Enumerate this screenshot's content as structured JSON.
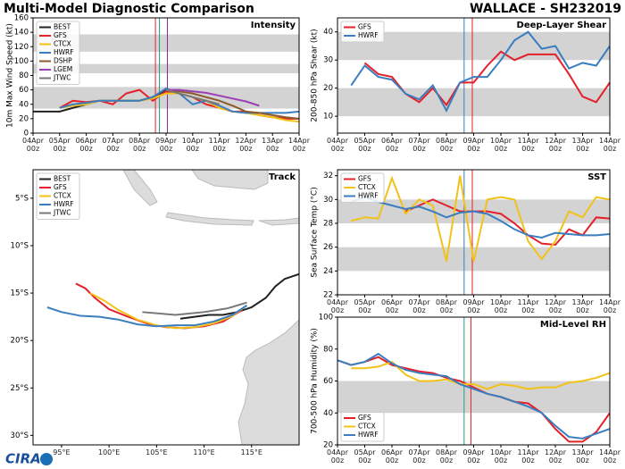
{
  "header": {
    "title": "Multi-Model Diagnostic Comparison",
    "storm": "WALLACE - SH232019"
  },
  "footer": "CIRA",
  "chart_data": [
    {
      "type": "line",
      "title": "Intensity",
      "y_label": "10m Max Wind Speed (kt)",
      "legend": "upper left",
      "xlim": [
        0,
        10
      ],
      "ylim": [
        0,
        160
      ],
      "xticks": [
        {
          "value": 0,
          "label": "04Apr\n00z"
        },
        {
          "value": 1,
          "label": "05Apr\n00z"
        },
        {
          "value": 2,
          "label": "06Apr\n00z"
        },
        {
          "value": 3,
          "label": "07Apr\n00z"
        },
        {
          "value": 4,
          "label": "08Apr\n00z"
        },
        {
          "value": 5,
          "label": "09Apr\n00z"
        },
        {
          "value": 6,
          "label": "10Apr\n00z"
        },
        {
          "value": 7,
          "label": "11Apr\n00z"
        },
        {
          "value": 8,
          "label": "12Apr\n00z"
        },
        {
          "value": 9,
          "label": "13Apr\n00z"
        },
        {
          "value": 10,
          "label": "14Apr\n00z"
        }
      ],
      "yticks": [
        0,
        20,
        40,
        60,
        80,
        100,
        120,
        140,
        160
      ],
      "bands": [
        [
          34,
          64
        ],
        [
          83,
          96
        ],
        [
          113,
          137
        ]
      ],
      "vlines": [
        {
          "x": 4.6,
          "color": "#e4202a"
        },
        {
          "x": 4.75,
          "color": "#1f9e89"
        },
        {
          "x": 5.05,
          "color": "#7b3294"
        }
      ],
      "x": [
        0,
        0.5,
        1,
        1.5,
        2,
        2.5,
        3,
        3.5,
        4,
        4.5,
        5,
        5.5,
        6,
        6.5,
        7,
        7.5,
        8,
        8.5,
        9,
        9.5,
        10
      ],
      "series": [
        {
          "name": "BEST",
          "color": "#222222",
          "values": [
            30,
            30,
            30,
            35,
            40,
            45,
            45,
            45,
            45,
            50,
            60,
            null,
            null,
            null,
            null,
            null,
            null,
            null,
            null,
            null,
            null
          ]
        },
        {
          "name": "GFS",
          "color": "#e4202a",
          "values": [
            null,
            null,
            35,
            45,
            43,
            45,
            40,
            55,
            60,
            45,
            58,
            55,
            50,
            40,
            35,
            30,
            30,
            25,
            22,
            20,
            20
          ]
        },
        {
          "name": "CTCX",
          "color": "#f2c219",
          "values": [
            null,
            null,
            35,
            38,
            40,
            45,
            45,
            45,
            45,
            48,
            55,
            55,
            50,
            45,
            35,
            30,
            28,
            25,
            22,
            18,
            16
          ]
        },
        {
          "name": "HWRF",
          "color": "#3a7ebf",
          "values": [
            null,
            null,
            35,
            40,
            42,
            45,
            45,
            45,
            45,
            50,
            62,
            55,
            40,
            45,
            38,
            30,
            28,
            28,
            28,
            28,
            30
          ]
        },
        {
          "name": "DSHP",
          "color": "#8c5a2b",
          "values": [
            null,
            null,
            null,
            null,
            null,
            null,
            null,
            null,
            null,
            null,
            60,
            58,
            55,
            50,
            45,
            38,
            30,
            28,
            25,
            22,
            20
          ]
        },
        {
          "name": "LGEM",
          "color": "#9b3fb5",
          "values": [
            null,
            null,
            null,
            null,
            null,
            null,
            null,
            null,
            null,
            null,
            60,
            60,
            58,
            56,
            52,
            48,
            44,
            38,
            null,
            null,
            null
          ]
        },
        {
          "name": "JTWC",
          "color": "#777777",
          "values": [
            null,
            null,
            null,
            null,
            null,
            null,
            null,
            null,
            null,
            null,
            60,
            55,
            50,
            45,
            40,
            null,
            null,
            null,
            null,
            null,
            null
          ]
        }
      ]
    },
    {
      "type": "track",
      "title": "Track",
      "legend": "upper left",
      "xlim": [
        92,
        120
      ],
      "ylim": [
        -31,
        -2
      ],
      "xticks": [
        {
          "value": 95,
          "label": "95°E"
        },
        {
          "value": 100,
          "label": "100°E"
        },
        {
          "value": 105,
          "label": "105°E"
        },
        {
          "value": 110,
          "label": "110°E"
        },
        {
          "value": 115,
          "label": "115°E"
        }
      ],
      "yticks": [
        {
          "value": -5,
          "label": "5°S"
        },
        {
          "value": -10,
          "label": "10°S"
        },
        {
          "value": -15,
          "label": "15°S"
        },
        {
          "value": -20,
          "label": "20°S"
        },
        {
          "value": -25,
          "label": "25°S"
        },
        {
          "value": -30,
          "label": "30°S"
        }
      ],
      "series": [
        {
          "name": "BEST",
          "color": "#222222",
          "lon": [
            120,
            118.5,
            117.5,
            116.5,
            115,
            113.5,
            112,
            110.5,
            109,
            107.5
          ],
          "lat": [
            -13,
            -13.5,
            -14.3,
            -15.5,
            -16.5,
            -17,
            -17.3,
            -17.3,
            -17.5,
            -17.7
          ]
        },
        {
          "name": "GFS",
          "color": "#e4202a",
          "lon": [
            96.5,
            97.5,
            98.5,
            100,
            102,
            104,
            106,
            108,
            110,
            112,
            114
          ],
          "lat": [
            -14,
            -14.5,
            -15.5,
            -16.7,
            -17.5,
            -18.2,
            -18.6,
            -18.7,
            -18.5,
            -18,
            -16.8
          ]
        },
        {
          "name": "CTCX",
          "color": "#f2c219",
          "lon": [
            98,
            99.5,
            101,
            103,
            105,
            107,
            109,
            111,
            113,
            114.5
          ],
          "lat": [
            -15,
            -15.8,
            -16.8,
            -17.8,
            -18.4,
            -18.7,
            -18.6,
            -18.2,
            -17.4,
            -16.3
          ]
        },
        {
          "name": "HWRF",
          "color": "#3a7ebf",
          "lon": [
            93.5,
            95,
            97,
            99,
            101,
            103,
            105,
            107,
            109,
            111,
            113,
            114.5
          ],
          "lat": [
            -16.5,
            -17,
            -17.4,
            -17.5,
            -17.8,
            -18.3,
            -18.5,
            -18.4,
            -18.4,
            -18,
            -17.3,
            -16.3
          ]
        },
        {
          "name": "JTWC",
          "color": "#777777",
          "lon": [
            103.5,
            107,
            110,
            112.5,
            114.5
          ],
          "lat": [
            -17,
            -17.3,
            -17,
            -16.6,
            -16
          ]
        }
      ]
    },
    {
      "type": "line",
      "title": "Deep-Layer Shear",
      "y_label": "200-850 hPa Shear (kt)",
      "legend": "upper left",
      "xlim": [
        0,
        10
      ],
      "ylim": [
        4,
        45
      ],
      "xticks": [
        {
          "value": 0,
          "label": "04Apr\n00z"
        },
        {
          "value": 1,
          "label": "05Apr\n00z"
        },
        {
          "value": 2,
          "label": "06Apr\n00z"
        },
        {
          "value": 3,
          "label": "07Apr\n00z"
        },
        {
          "value": 4,
          "label": "08Apr\n00z"
        },
        {
          "value": 5,
          "label": "09Apr\n00z"
        },
        {
          "value": 6,
          "label": "10Apr\n00z"
        },
        {
          "value": 7,
          "label": "11Apr\n00z"
        },
        {
          "value": 8,
          "label": "12Apr\n00z"
        },
        {
          "value": 9,
          "label": "13Apr\n00z"
        },
        {
          "value": 10,
          "label": "14Apr\n00z"
        }
      ],
      "yticks": [
        10,
        20,
        30,
        40
      ],
      "bands": [
        [
          10,
          20
        ],
        [
          30,
          40
        ]
      ],
      "vlines": [
        {
          "x": 4.65,
          "color": "#3a7ebf"
        },
        {
          "x": 4.95,
          "color": "#e4202a"
        }
      ],
      "x": [
        0,
        0.5,
        1,
        1.5,
        2,
        2.5,
        3,
        3.5,
        4,
        4.5,
        5,
        5.5,
        6,
        6.5,
        7,
        7.5,
        8,
        8.5,
        9,
        9.5,
        10
      ],
      "series": [
        {
          "name": "GFS",
          "color": "#e4202a",
          "values": [
            null,
            null,
            29,
            25,
            24,
            18,
            15,
            20,
            14,
            22,
            22,
            28,
            33,
            30,
            32,
            32,
            32,
            25,
            17,
            15,
            22
          ]
        },
        {
          "name": "HWRF",
          "color": "#3a7ebf",
          "values": [
            null,
            21,
            28,
            24,
            23,
            18,
            16,
            21,
            12,
            22,
            24,
            24,
            30,
            37,
            40,
            34,
            35,
            27,
            29,
            28,
            35
          ]
        }
      ]
    },
    {
      "type": "line",
      "title": "SST",
      "y_label": "Sea Surface Temp (°C)",
      "legend": "upper left",
      "xlim": [
        0,
        10
      ],
      "ylim": [
        22,
        32.5
      ],
      "xticks": [
        {
          "value": 0,
          "label": "04Apr\n00z"
        },
        {
          "value": 1,
          "label": "05Apr\n00z"
        },
        {
          "value": 2,
          "label": "06Apr\n00z"
        },
        {
          "value": 3,
          "label": "07Apr\n00z"
        },
        {
          "value": 4,
          "label": "08Apr\n00z"
        },
        {
          "value": 5,
          "label": "09Apr\n00z"
        },
        {
          "value": 6,
          "label": "10Apr\n00z"
        },
        {
          "value": 7,
          "label": "11Apr\n00z"
        },
        {
          "value": 8,
          "label": "12Apr\n00z"
        },
        {
          "value": 9,
          "label": "13Apr\n00z"
        },
        {
          "value": 10,
          "label": "14Apr\n00z"
        }
      ],
      "yticks": [
        22,
        24,
        26,
        28,
        30,
        32
      ],
      "bands": [
        [
          24,
          26
        ],
        [
          28,
          30
        ]
      ],
      "vlines": [
        {
          "x": 4.65,
          "color": "#3a7ebf"
        },
        {
          "x": 4.95,
          "color": "#e4202a"
        }
      ],
      "x": [
        0,
        0.5,
        1,
        1.5,
        2,
        2.5,
        3,
        3.5,
        4,
        4.5,
        5,
        5.5,
        6,
        6.5,
        7,
        7.5,
        8,
        8.5,
        9,
        9.5,
        10
      ],
      "series": [
        {
          "name": "GFS",
          "color": "#e4202a",
          "values": [
            null,
            null,
            null,
            null,
            null,
            29,
            29.5,
            30,
            29.5,
            29,
            29,
            29,
            28.8,
            28,
            27,
            26.3,
            26.2,
            27.5,
            27,
            28.5,
            28.4
          ]
        },
        {
          "name": "CTCX",
          "color": "#f2c219",
          "values": [
            null,
            28.2,
            28.5,
            28.4,
            31.8,
            28.8,
            30,
            29.5,
            24.8,
            32,
            24.8,
            30,
            30.2,
            30,
            26.5,
            25,
            26.5,
            29,
            28.5,
            30.2,
            30
          ]
        },
        {
          "name": "HWRF",
          "color": "#3a7ebf",
          "values": [
            null,
            29.8,
            30.2,
            29.8,
            29.5,
            29.2,
            29.4,
            29,
            28.5,
            28.9,
            29,
            28.8,
            28.2,
            27.5,
            27,
            26.8,
            27.2,
            27.1,
            27,
            27,
            27.1
          ]
        }
      ]
    },
    {
      "type": "line",
      "title": "Mid-Level RH",
      "y_label": "700-500 hPa Humidity (%)",
      "legend": "lower left",
      "xlim": [
        0,
        10
      ],
      "ylim": [
        20,
        100
      ],
      "xticks": [
        {
          "value": 0,
          "label": "04Apr\n00z"
        },
        {
          "value": 1,
          "label": "05Apr\n00z"
        },
        {
          "value": 2,
          "label": "06Apr\n00z"
        },
        {
          "value": 3,
          "label": "07Apr\n00z"
        },
        {
          "value": 4,
          "label": "08Apr\n00z"
        },
        {
          "value": 5,
          "label": "09Apr\n00z"
        },
        {
          "value": 6,
          "label": "10Apr\n00z"
        },
        {
          "value": 7,
          "label": "11Apr\n00z"
        },
        {
          "value": 8,
          "label": "12Apr\n00z"
        },
        {
          "value": 9,
          "label": "13Apr\n00z"
        },
        {
          "value": 10,
          "label": "14Apr\n00z"
        }
      ],
      "yticks": [
        20,
        40,
        60,
        80,
        100
      ],
      "bands": [
        [
          40,
          60
        ]
      ],
      "vlines": [
        {
          "x": 4.65,
          "color": "#1f9e89"
        },
        {
          "x": 4.9,
          "color": "#e4202a"
        }
      ],
      "x": [
        0,
        0.5,
        1,
        1.5,
        2,
        2.5,
        3,
        3.5,
        4,
        4.5,
        5,
        5.5,
        6,
        6.5,
        7,
        7.5,
        8,
        8.5,
        9,
        9.5,
        10
      ],
      "series": [
        {
          "name": "GFS",
          "color": "#e4202a",
          "values": [
            73,
            70,
            72,
            75,
            70,
            68,
            66,
            65,
            62,
            60,
            56,
            52,
            50,
            47,
            46,
            40,
            30,
            22,
            22,
            28,
            40
          ]
        },
        {
          "name": "CTCX",
          "color": "#f2c219",
          "values": [
            null,
            68,
            68,
            69,
            72,
            64,
            60,
            60,
            61,
            58,
            58,
            55,
            58,
            57,
            55,
            56,
            56,
            59,
            60,
            62,
            65
          ]
        },
        {
          "name": "HWRF",
          "color": "#3a7ebf",
          "values": [
            73,
            70,
            72,
            77,
            71,
            67,
            65,
            64,
            63,
            58,
            55,
            52,
            50,
            47,
            44,
            40,
            32,
            25,
            24,
            27,
            30
          ]
        }
      ]
    }
  ]
}
